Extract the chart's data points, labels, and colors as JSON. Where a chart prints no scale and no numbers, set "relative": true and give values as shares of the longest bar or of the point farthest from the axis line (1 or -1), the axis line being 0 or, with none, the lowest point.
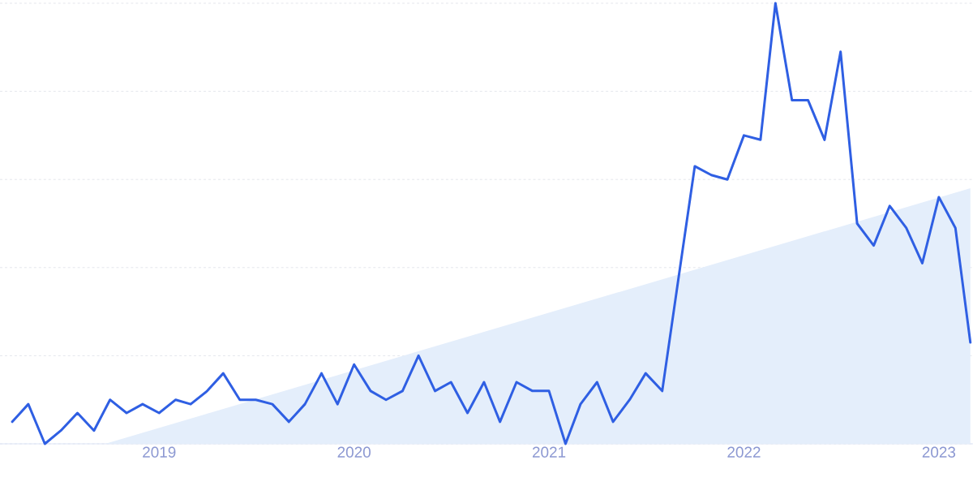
{
  "chart_data": {
    "type": "line",
    "relative": true,
    "grid": "y",
    "xlim": [
      "2018-03-09",
      "2023-03-06"
    ],
    "xticks": [
      "2019",
      "2020",
      "2021",
      "2022",
      "2023"
    ],
    "series": [
      {
        "type": "area",
        "color": "#e4eefb",
        "x": [
          "2018-09-22",
          "2023-03-01"
        ],
        "values": [
          0,
          0.58
        ]
      },
      {
        "color": "#2f5fe3",
        "x": [
          "2018-04",
          "2018-05",
          "2018-06",
          "2018-07",
          "2018-08",
          "2018-09",
          "2018-10",
          "2018-11",
          "2018-12",
          "2019-01",
          "2019-02",
          "2019-03",
          "2019-04",
          "2019-05",
          "2019-06",
          "2019-07",
          "2019-08",
          "2019-09",
          "2019-10",
          "2019-11",
          "2019-12",
          "2020-01",
          "2020-02",
          "2020-03",
          "2020-04",
          "2020-05",
          "2020-06",
          "2020-07",
          "2020-08",
          "2020-09",
          "2020-10",
          "2020-11",
          "2020-12",
          "2021-01",
          "2021-02",
          "2021-03",
          "2021-04",
          "2021-05",
          "2021-06",
          "2021-07",
          "2021-08",
          "2021-09",
          "2021-10",
          "2021-11",
          "2021-12",
          "2022-01",
          "2022-02",
          "2022-03",
          "2022-04",
          "2022-05",
          "2022-06",
          "2022-07",
          "2022-08",
          "2022-09",
          "2022-10",
          "2022-11",
          "2022-12",
          "2023-01",
          "2023-02",
          "2023-03"
        ],
        "values": [
          0.05,
          0.09,
          0.0,
          0.03,
          0.07,
          0.03,
          0.1,
          0.07,
          0.09,
          0.07,
          0.1,
          0.09,
          0.12,
          0.16,
          0.1,
          0.1,
          0.09,
          0.05,
          0.09,
          0.16,
          0.09,
          0.18,
          0.12,
          0.1,
          0.12,
          0.2,
          0.12,
          0.14,
          0.07,
          0.14,
          0.05,
          0.14,
          0.12,
          0.12,
          0.0,
          0.09,
          0.14,
          0.05,
          0.1,
          0.16,
          0.12,
          0.38,
          0.63,
          0.61,
          0.6,
          0.7,
          0.69,
          1,
          0.78,
          0.78,
          0.69,
          0.89,
          0.5,
          0.45,
          0.54,
          0.49,
          0.41,
          0.56,
          0.49,
          0.23
        ]
      }
    ]
  }
}
